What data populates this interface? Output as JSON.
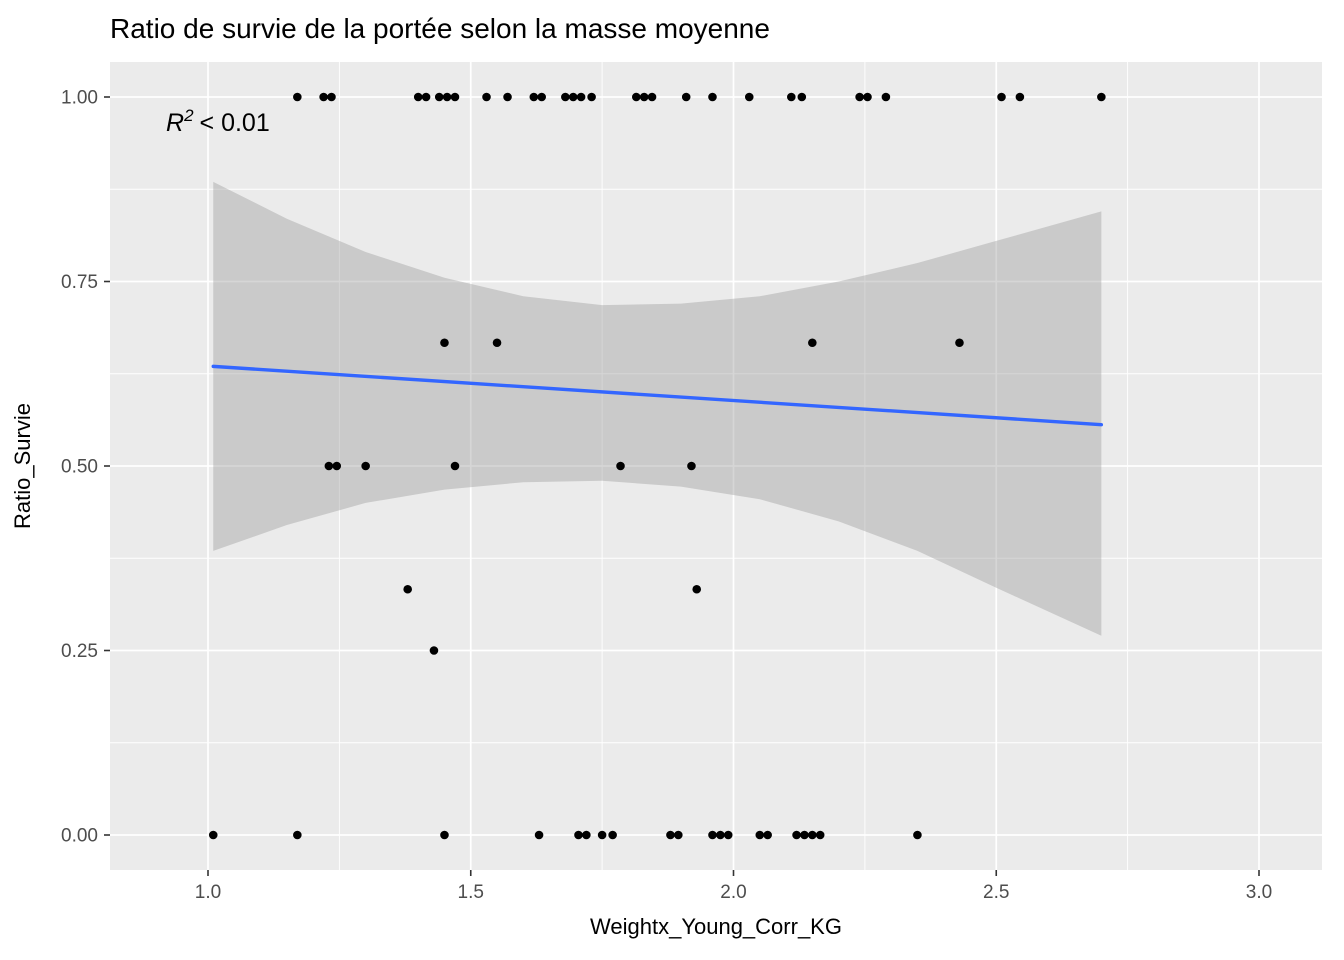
{
  "title": "Ratio de survie de la portée selon la masse moyenne",
  "annotation": {
    "r": "R",
    "exponent": "2",
    "rest": "< 0.01"
  },
  "axes": {
    "x": {
      "label": "Weightx_Young_Corr_KG",
      "ticks": [
        1.0,
        1.5,
        2.0,
        2.5,
        3.0
      ],
      "tick_labels": [
        "1.0",
        "1.5",
        "2.0",
        "2.5",
        "3.0"
      ]
    },
    "y": {
      "label": "Ratio_Survie",
      "ticks": [
        0.0,
        0.25,
        0.5,
        0.75,
        1.0
      ],
      "tick_labels": [
        "0.00",
        "0.25",
        "0.50",
        "0.75",
        "1.00"
      ]
    }
  },
  "chart_data": {
    "type": "scatter",
    "title": "Ratio de survie de la portée selon la masse moyenne",
    "xlabel": "Weightx_Young_Corr_KG",
    "ylabel": "Ratio_Survie",
    "xlim": [
      0.81,
      3.12
    ],
    "ylim": [
      -0.047,
      1.047
    ],
    "x_ticks": [
      1.0,
      1.5,
      2.0,
      2.5,
      3.0
    ],
    "y_ticks": [
      0.0,
      0.25,
      0.5,
      0.75,
      1.0
    ],
    "grid": true,
    "annotation_text": "R2 < 0.01",
    "colors": {
      "panel": "#EBEBEB",
      "grid": "#FFFFFF",
      "band": "#999999",
      "smooth_line": "#3366FF",
      "point": "#000000",
      "tick_text": "#4D4D4D"
    },
    "points": [
      [
        1.17,
        1.0
      ],
      [
        1.22,
        1.0
      ],
      [
        1.235,
        1.0
      ],
      [
        1.4,
        1.0
      ],
      [
        1.415,
        1.0
      ],
      [
        1.44,
        1.0
      ],
      [
        1.455,
        1.0
      ],
      [
        1.47,
        1.0
      ],
      [
        1.53,
        1.0
      ],
      [
        1.57,
        1.0
      ],
      [
        1.62,
        1.0
      ],
      [
        1.635,
        1.0
      ],
      [
        1.68,
        1.0
      ],
      [
        1.695,
        1.0
      ],
      [
        1.71,
        1.0
      ],
      [
        1.73,
        1.0
      ],
      [
        1.815,
        1.0
      ],
      [
        1.83,
        1.0
      ],
      [
        1.845,
        1.0
      ],
      [
        1.91,
        1.0
      ],
      [
        1.96,
        1.0
      ],
      [
        2.03,
        1.0
      ],
      [
        2.11,
        1.0
      ],
      [
        2.13,
        1.0
      ],
      [
        2.24,
        1.0
      ],
      [
        2.255,
        1.0
      ],
      [
        2.29,
        1.0
      ],
      [
        2.51,
        1.0
      ],
      [
        2.545,
        1.0
      ],
      [
        2.7,
        1.0
      ],
      [
        1.45,
        0.667
      ],
      [
        1.55,
        0.667
      ],
      [
        2.15,
        0.667
      ],
      [
        2.43,
        0.667
      ],
      [
        1.23,
        0.5
      ],
      [
        1.245,
        0.5
      ],
      [
        1.3,
        0.5
      ],
      [
        1.47,
        0.5
      ],
      [
        1.785,
        0.5
      ],
      [
        1.92,
        0.5
      ],
      [
        1.38,
        0.333
      ],
      [
        1.93,
        0.333
      ],
      [
        1.43,
        0.25
      ],
      [
        1.01,
        0.0
      ],
      [
        1.17,
        0.0
      ],
      [
        1.45,
        0.0
      ],
      [
        1.63,
        0.0
      ],
      [
        1.705,
        0.0
      ],
      [
        1.72,
        0.0
      ],
      [
        1.75,
        0.0
      ],
      [
        1.77,
        0.0
      ],
      [
        1.88,
        0.0
      ],
      [
        1.895,
        0.0
      ],
      [
        1.96,
        0.0
      ],
      [
        1.975,
        0.0
      ],
      [
        1.99,
        0.0
      ],
      [
        2.05,
        0.0
      ],
      [
        2.065,
        0.0
      ],
      [
        2.12,
        0.0
      ],
      [
        2.135,
        0.0
      ],
      [
        2.15,
        0.0
      ],
      [
        2.165,
        0.0
      ],
      [
        2.35,
        0.0
      ]
    ],
    "regression_line": {
      "x": [
        1.01,
        2.7
      ],
      "y": [
        0.635,
        0.556
      ],
      "color": "#3366FF"
    },
    "confidence_band": {
      "x": [
        1.01,
        1.15,
        1.3,
        1.45,
        1.6,
        1.75,
        1.9,
        2.05,
        2.2,
        2.35,
        2.5,
        2.7
      ],
      "upper": [
        0.885,
        0.835,
        0.79,
        0.755,
        0.73,
        0.718,
        0.72,
        0.73,
        0.75,
        0.775,
        0.805,
        0.845
      ],
      "lower": [
        0.385,
        0.42,
        0.45,
        0.468,
        0.478,
        0.48,
        0.472,
        0.455,
        0.425,
        0.385,
        0.335,
        0.27
      ]
    }
  }
}
